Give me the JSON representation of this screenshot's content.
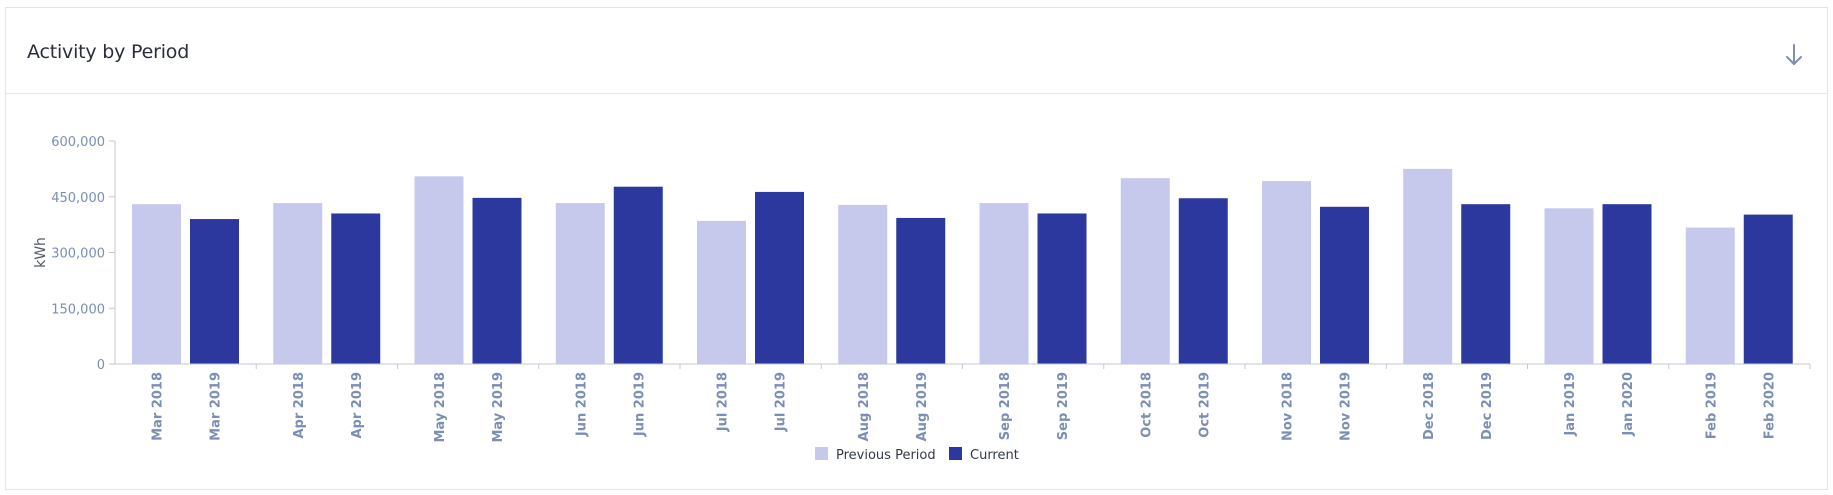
{
  "card": {
    "title": "Activity by Period",
    "download_icon": "arrow-down-icon"
  },
  "colors": {
    "previous": "#c7c9ec",
    "current": "#2d389f",
    "axis": "#c2c8d4",
    "tick_text": "#7b8eb3"
  },
  "chart_data": {
    "type": "bar",
    "title": "",
    "ylabel": "kWh",
    "xlabel": "",
    "ylim": [
      0,
      600000
    ],
    "yticks": [
      0,
      150000,
      300000,
      450000,
      600000
    ],
    "ytick_labels": [
      "0",
      "150,000",
      "300,000",
      "450,000",
      "600,000"
    ],
    "grid": false,
    "legend_position": "bottom-center",
    "groups": [
      {
        "previous_label": "Mar 2018",
        "current_label": "Mar 2019"
      },
      {
        "previous_label": "Apr 2018",
        "current_label": "Apr 2019"
      },
      {
        "previous_label": "May 2018",
        "current_label": "May 2019"
      },
      {
        "previous_label": "Jun 2018",
        "current_label": "Jun 2019"
      },
      {
        "previous_label": "Jul 2018",
        "current_label": "Jul 2019"
      },
      {
        "previous_label": "Aug 2018",
        "current_label": "Aug 2019"
      },
      {
        "previous_label": "Sep 2018",
        "current_label": "Sep 2019"
      },
      {
        "previous_label": "Oct 2018",
        "current_label": "Oct 2019"
      },
      {
        "previous_label": "Nov 2018",
        "current_label": "Nov 2019"
      },
      {
        "previous_label": "Dec 2018",
        "current_label": "Dec 2019"
      },
      {
        "previous_label": "Jan 2019",
        "current_label": "Jan 2020"
      },
      {
        "previous_label": "Feb 2019",
        "current_label": "Feb 2020"
      }
    ],
    "series": [
      {
        "name": "Previous Period",
        "values": [
          430000,
          433000,
          505000,
          433000,
          385000,
          428000,
          433000,
          500000,
          492000,
          525000,
          419000,
          367000
        ]
      },
      {
        "name": "Current",
        "values": [
          390000,
          405000,
          447000,
          477000,
          463000,
          393000,
          405000,
          446000,
          423000,
          430000,
          430000,
          402000
        ]
      }
    ]
  }
}
